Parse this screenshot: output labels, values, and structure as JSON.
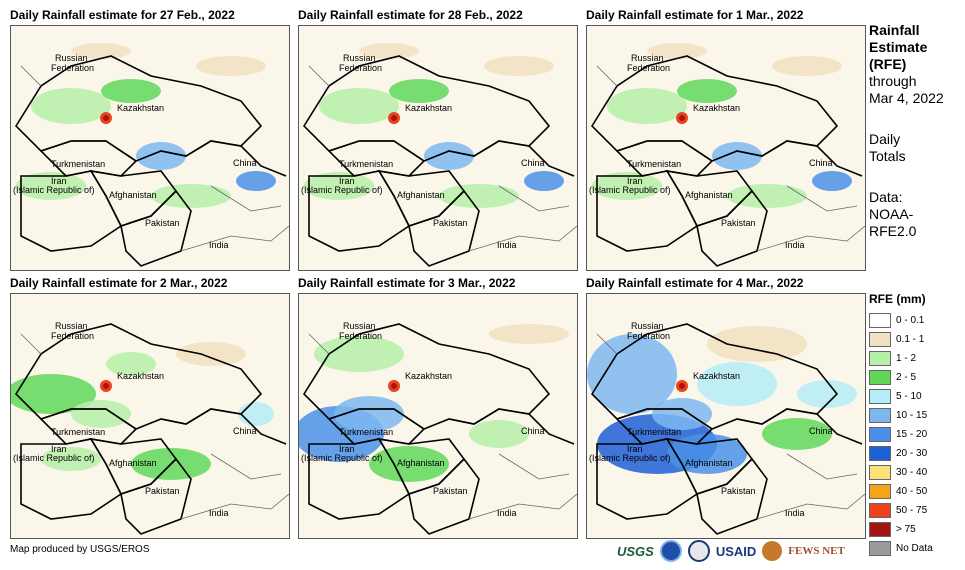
{
  "panels": [
    {
      "title": "Daily Rainfall estimate for 27 Feb., 2022",
      "wet": 1
    },
    {
      "title": "Daily Rainfall estimate for 28 Feb., 2022",
      "wet": 1
    },
    {
      "title": "Daily Rainfall estimate for 1 Mar., 2022",
      "wet": 1
    },
    {
      "title": "Daily Rainfall estimate for 2 Mar., 2022",
      "wet": 2
    },
    {
      "title": "Daily Rainfall estimate for 3 Mar., 2022",
      "wet": 3
    },
    {
      "title": "Daily Rainfall estimate for 4 Mar., 2022",
      "wet": 4
    }
  ],
  "map_labels": {
    "russia": "Russian",
    "russia2": "Federation",
    "kazakhstan": "Kazakhstan",
    "turkmenistan": "Turkmenistan",
    "iran": "Iran",
    "iran2": "(Islamic Republic of)",
    "afghanistan": "Afghanistan",
    "pakistan": "Pakistan",
    "india": "India",
    "china": "China"
  },
  "side": {
    "title1": "Rainfall",
    "title2": "Estimate",
    "title3": "(RFE)",
    "through": "through",
    "date": "Mar 4, 2022",
    "daily1": "Daily",
    "daily2": "Totals",
    "data1": "Data:",
    "data2": "NOAA-",
    "data3": "RFE2.0"
  },
  "legend": {
    "title": "RFE (mm)",
    "items": [
      {
        "label": "0 - 0.1",
        "color": "#ffffff"
      },
      {
        "label": "0.1 - 1",
        "color": "#f1e1c2"
      },
      {
        "label": "1 - 2",
        "color": "#b5f0a8"
      },
      {
        "label": "2 - 5",
        "color": "#5fd85a"
      },
      {
        "label": "5 - 10",
        "color": "#b4ecf7"
      },
      {
        "label": "10 - 15",
        "color": "#7cb7f0"
      },
      {
        "label": "15 - 20",
        "color": "#4a90e8"
      },
      {
        "label": "20 - 30",
        "color": "#1f5fd6"
      },
      {
        "label": "30 - 40",
        "color": "#fce07a"
      },
      {
        "label": "40 - 50",
        "color": "#f6a21c"
      },
      {
        "label": "50 - 75",
        "color": "#f0421a"
      },
      {
        "label": "> 75",
        "color": "#a41414"
      },
      {
        "label": "No Data",
        "color": "#9a9a9a"
      }
    ]
  },
  "credit": "Map produced by USGS/EROS",
  "logos": {
    "usgs": "USGS",
    "usaid": "USAID",
    "fews": "FEWS NET"
  }
}
